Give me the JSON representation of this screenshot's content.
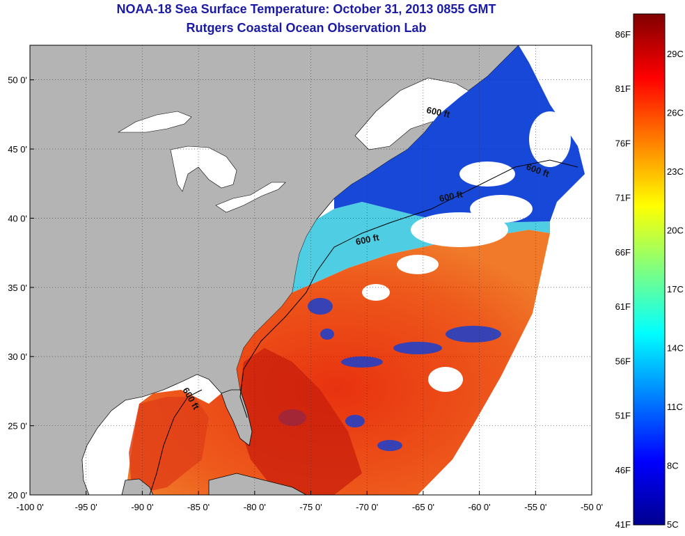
{
  "header": {
    "title": "NOAA-18 Sea Surface Temperature:  October 31, 2013 0855 GMT",
    "subtitle": "Rutgers Coastal Ocean Observation Lab"
  },
  "map": {
    "lon_range": [
      -100,
      -50
    ],
    "lat_range": [
      20,
      52.5
    ],
    "lon_ticks": [
      {
        "value": -100,
        "label": "-100 0'"
      },
      {
        "value": -95,
        "label": "-95 0'"
      },
      {
        "value": -90,
        "label": "-90 0'"
      },
      {
        "value": -85,
        "label": "-85 0'"
      },
      {
        "value": -80,
        "label": "-80 0'"
      },
      {
        "value": -75,
        "label": "-75 0'"
      },
      {
        "value": -70,
        "label": "-70 0'"
      },
      {
        "value": -65,
        "label": "-65 0'"
      },
      {
        "value": -60,
        "label": "-60 0'"
      },
      {
        "value": -55,
        "label": "-55 0'"
      },
      {
        "value": -50,
        "label": "-50 0'"
      }
    ],
    "lat_ticks": [
      {
        "value": 20,
        "label": "20 0'"
      },
      {
        "value": 25,
        "label": "25 0'"
      },
      {
        "value": 30,
        "label": "30 0'"
      },
      {
        "value": 35,
        "label": "35 0'"
      },
      {
        "value": 40,
        "label": "40 0'"
      },
      {
        "value": 45,
        "label": "45 0'"
      },
      {
        "value": 50,
        "label": "50 0'"
      }
    ],
    "grid": "dotted",
    "contour_labels": [
      "600 ft",
      "600 ft",
      "600 ft",
      "600 ft",
      "600 ft"
    ],
    "colors": {
      "land": "#b4b4b4",
      "no_data": "#ffffff",
      "warm": "#e8401a",
      "cold": "#1030c8"
    }
  },
  "colorbar": {
    "range_c": [
      5,
      31
    ],
    "colors": [
      "#00008f",
      "#0000ff",
      "#0080ff",
      "#00ffff",
      "#80ff80",
      "#ffff00",
      "#ff8000",
      "#ff0000",
      "#800000"
    ],
    "f_labels": [
      "86F",
      "81F",
      "76F",
      "71F",
      "66F",
      "61F",
      "56F",
      "51F",
      "46F",
      "41F"
    ],
    "c_labels": [
      "29C",
      "26C",
      "23C",
      "20C",
      "17C",
      "14C",
      "11C",
      "8C",
      "5C"
    ]
  }
}
